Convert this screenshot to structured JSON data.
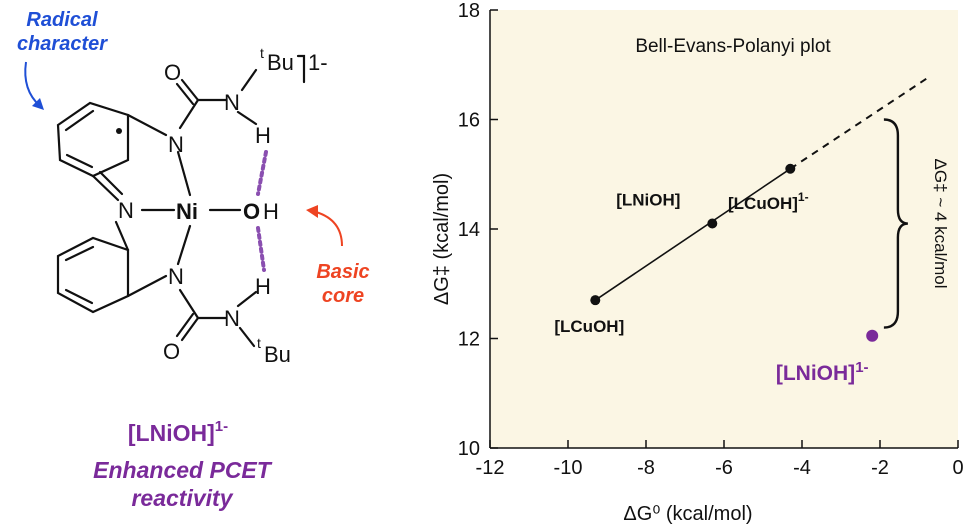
{
  "molecule": {
    "radical_label": [
      "Radical",
      "character"
    ],
    "basic_label": [
      "Basic",
      "core"
    ],
    "charge": "1-",
    "name": "[LNiOH]",
    "name_charge": "1-",
    "caption": [
      "Enhanced PCET",
      "reactivity"
    ],
    "atoms": {
      "ni": "Ni",
      "o_hydroxide": "O",
      "h_hydroxide": "H",
      "n_top": "N",
      "n_bridge": "N",
      "n_bottom": "N",
      "n_amide_top": "N",
      "n_amide_bottom": "N",
      "h_top": "H",
      "h_bottom": "H",
      "o_carbonyl_top": "O",
      "o_carbonyl_bottom": "O",
      "tbu_top_sup": "t",
      "tbu_top": "Bu",
      "tbu_bottom_sup": "t",
      "tbu_bottom": "Bu"
    },
    "colors": {
      "radical": "#1f4fd6",
      "basic": "#ee4422",
      "ni": "#1a9a3a",
      "o": "#ee4422",
      "hbond": "#8a4fb0",
      "caption": "#7a2a9a"
    }
  },
  "chart_data": {
    "type": "scatter",
    "title": "Bell-Evans-Polanyi plot",
    "xlabel": "ΔG⁰ (kcal/mol)",
    "ylabel": "ΔG‡ (kcal/mol)",
    "xlim": [
      -12,
      0
    ],
    "ylim": [
      10,
      18
    ],
    "x_ticks": [
      -12,
      -10,
      -8,
      -6,
      -4,
      -2,
      0
    ],
    "y_ticks": [
      10,
      12,
      14,
      16,
      18
    ],
    "background": "#fbf6e4",
    "points": [
      {
        "label": "[LCuOH]",
        "charge": "",
        "x": -9.3,
        "y": 12.7,
        "color": "#111111"
      },
      {
        "label": "[LNiOH]",
        "charge": "",
        "x": -6.3,
        "y": 14.1,
        "color": "#111111"
      },
      {
        "label": "[LCuOH]",
        "charge": "1-",
        "x": -4.3,
        "y": 15.1,
        "color": "#111111"
      },
      {
        "label": "[LNiOH]",
        "charge": "1-",
        "x": -2.2,
        "y": 12.05,
        "color": "#7a2a9a"
      }
    ],
    "fit_line": {
      "solid": [
        [
          -9.3,
          12.7
        ],
        [
          -4.3,
          15.1
        ]
      ],
      "dashed": [
        [
          -4.3,
          15.1
        ],
        [
          -0.8,
          16.75
        ]
      ]
    },
    "bracket": {
      "x": -1.9,
      "y_top": 16.0,
      "y_bottom": 12.2
    },
    "annotation": "ΔG‡ ~ 4 kcal/mol"
  }
}
